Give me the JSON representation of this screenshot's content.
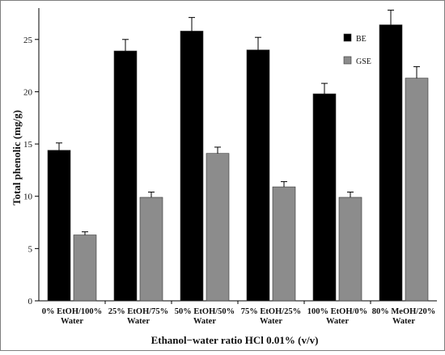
{
  "chart_data": {
    "type": "bar",
    "title": "",
    "xlabel": "Ethanol−water ratio HCl 0.01% (v/v)",
    "ylabel": "Total phenolic (mg/g)",
    "ylim": [
      0,
      28
    ],
    "yticks": [
      0,
      5,
      10,
      15,
      20,
      25
    ],
    "grid": false,
    "legend_position": "top-right",
    "categories": [
      [
        "0% EtOH/100%",
        "Water"
      ],
      [
        "25% EtOH/75%",
        "Water"
      ],
      [
        "50% EtOH/50%",
        "Water"
      ],
      [
        "75% EtOH/25%",
        "Water"
      ],
      [
        "100% EtOH/0%",
        "Water"
      ],
      [
        "80% MeOH/20%",
        "Water"
      ]
    ],
    "series": [
      {
        "name": "BE",
        "color": "#000000",
        "values": [
          14.4,
          23.9,
          25.8,
          24.0,
          19.8,
          26.4
        ],
        "errors": [
          0.7,
          1.1,
          1.3,
          1.2,
          1.0,
          1.4
        ]
      },
      {
        "name": "GSE",
        "color": "#8c8c8c",
        "values": [
          6.3,
          9.9,
          14.1,
          10.9,
          9.9,
          21.3
        ],
        "errors": [
          0.3,
          0.5,
          0.6,
          0.5,
          0.5,
          1.1
        ]
      }
    ]
  }
}
